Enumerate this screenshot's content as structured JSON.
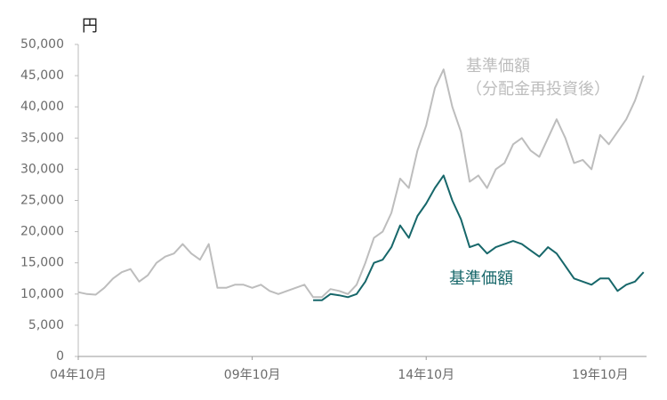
{
  "chart_data": {
    "type": "line",
    "y_label": "円",
    "x": [
      "2004-10",
      "2005-01",
      "2005-04",
      "2005-07",
      "2005-10",
      "2006-01",
      "2006-04",
      "2006-07",
      "2006-10",
      "2007-01",
      "2007-04",
      "2007-07",
      "2007-10",
      "2008-01",
      "2008-04",
      "2008-07",
      "2008-10",
      "2009-01",
      "2009-04",
      "2009-07",
      "2009-10",
      "2010-01",
      "2010-04",
      "2010-07",
      "2010-10",
      "2011-01",
      "2011-04",
      "2011-07",
      "2011-10",
      "2012-01",
      "2012-04",
      "2012-07",
      "2012-10",
      "2013-01",
      "2013-04",
      "2013-07",
      "2013-10",
      "2014-01",
      "2014-04",
      "2014-07",
      "2014-10",
      "2015-01",
      "2015-04",
      "2015-07",
      "2015-10",
      "2016-01",
      "2016-04",
      "2016-07",
      "2016-10",
      "2017-01",
      "2017-04",
      "2017-07",
      "2017-10",
      "2018-01",
      "2018-04",
      "2018-07",
      "2018-10",
      "2019-01",
      "2019-04",
      "2019-07",
      "2019-10",
      "2020-01",
      "2020-04",
      "2020-07",
      "2020-10",
      "2021-01"
    ],
    "series": [
      {
        "name": "基準価額\n（分配金再投資後）",
        "color": "#bdbdbd",
        "values": [
          10300,
          10000,
          9900,
          11000,
          12500,
          13500,
          14000,
          12000,
          13000,
          15000,
          16000,
          16500,
          18000,
          16500,
          15500,
          18000,
          11000,
          11000,
          11500,
          11500,
          11000,
          11500,
          10500,
          10000,
          10500,
          11000,
          11500,
          9500,
          9500,
          10800,
          10500,
          10000,
          11500,
          15000,
          19000,
          20000,
          23000,
          28500,
          27000,
          33000,
          37000,
          43000,
          46000,
          40000,
          36000,
          28000,
          29000,
          27000,
          30000,
          31000,
          34000,
          35000,
          33000,
          32000,
          35000,
          38000,
          35000,
          31000,
          31500,
          30000,
          35500,
          34000,
          36000,
          38000,
          41000,
          45000
        ]
      },
      {
        "name": "基準価額",
        "color": "#17676a",
        "values": [
          null,
          null,
          null,
          null,
          null,
          null,
          null,
          null,
          null,
          null,
          null,
          null,
          null,
          null,
          null,
          null,
          null,
          null,
          null,
          null,
          null,
          null,
          null,
          null,
          null,
          null,
          null,
          9000,
          9000,
          10000,
          9800,
          9500,
          10000,
          12000,
          15000,
          15500,
          17500,
          21000,
          19000,
          22500,
          24500,
          27000,
          29000,
          25000,
          22000,
          17500,
          18000,
          16500,
          17500,
          18000,
          18500,
          18000,
          17000,
          16000,
          17500,
          16500,
          14500,
          12500,
          12000,
          11500,
          12500,
          12500,
          10500,
          11500,
          12000,
          13500
        ]
      }
    ],
    "xlim": [
      "2004-10",
      "2021-02"
    ],
    "xticks": [
      {
        "value": "2004-10",
        "label": "04年10月"
      },
      {
        "value": "2009-10",
        "label": "09年10月"
      },
      {
        "value": "2014-10",
        "label": "14年10月"
      },
      {
        "value": "2019-10",
        "label": "19年10月"
      }
    ],
    "ylim": [
      0,
      50000
    ],
    "yticks": [
      0,
      {
        "value": 5000,
        "label": "5,000"
      },
      {
        "value": 10000,
        "label": "10,000"
      },
      {
        "value": 15000,
        "label": "15,000"
      },
      {
        "value": 20000,
        "label": "20,000"
      },
      {
        "value": 25000,
        "label": "25,000"
      },
      {
        "value": 30000,
        "label": "30,000"
      },
      {
        "value": 35000,
        "label": "35,000"
      },
      {
        "value": 40000,
        "label": "40,000"
      },
      {
        "value": 45000,
        "label": "45,000"
      },
      {
        "value": 50000,
        "label": "50,000"
      }
    ],
    "grid": false
  }
}
